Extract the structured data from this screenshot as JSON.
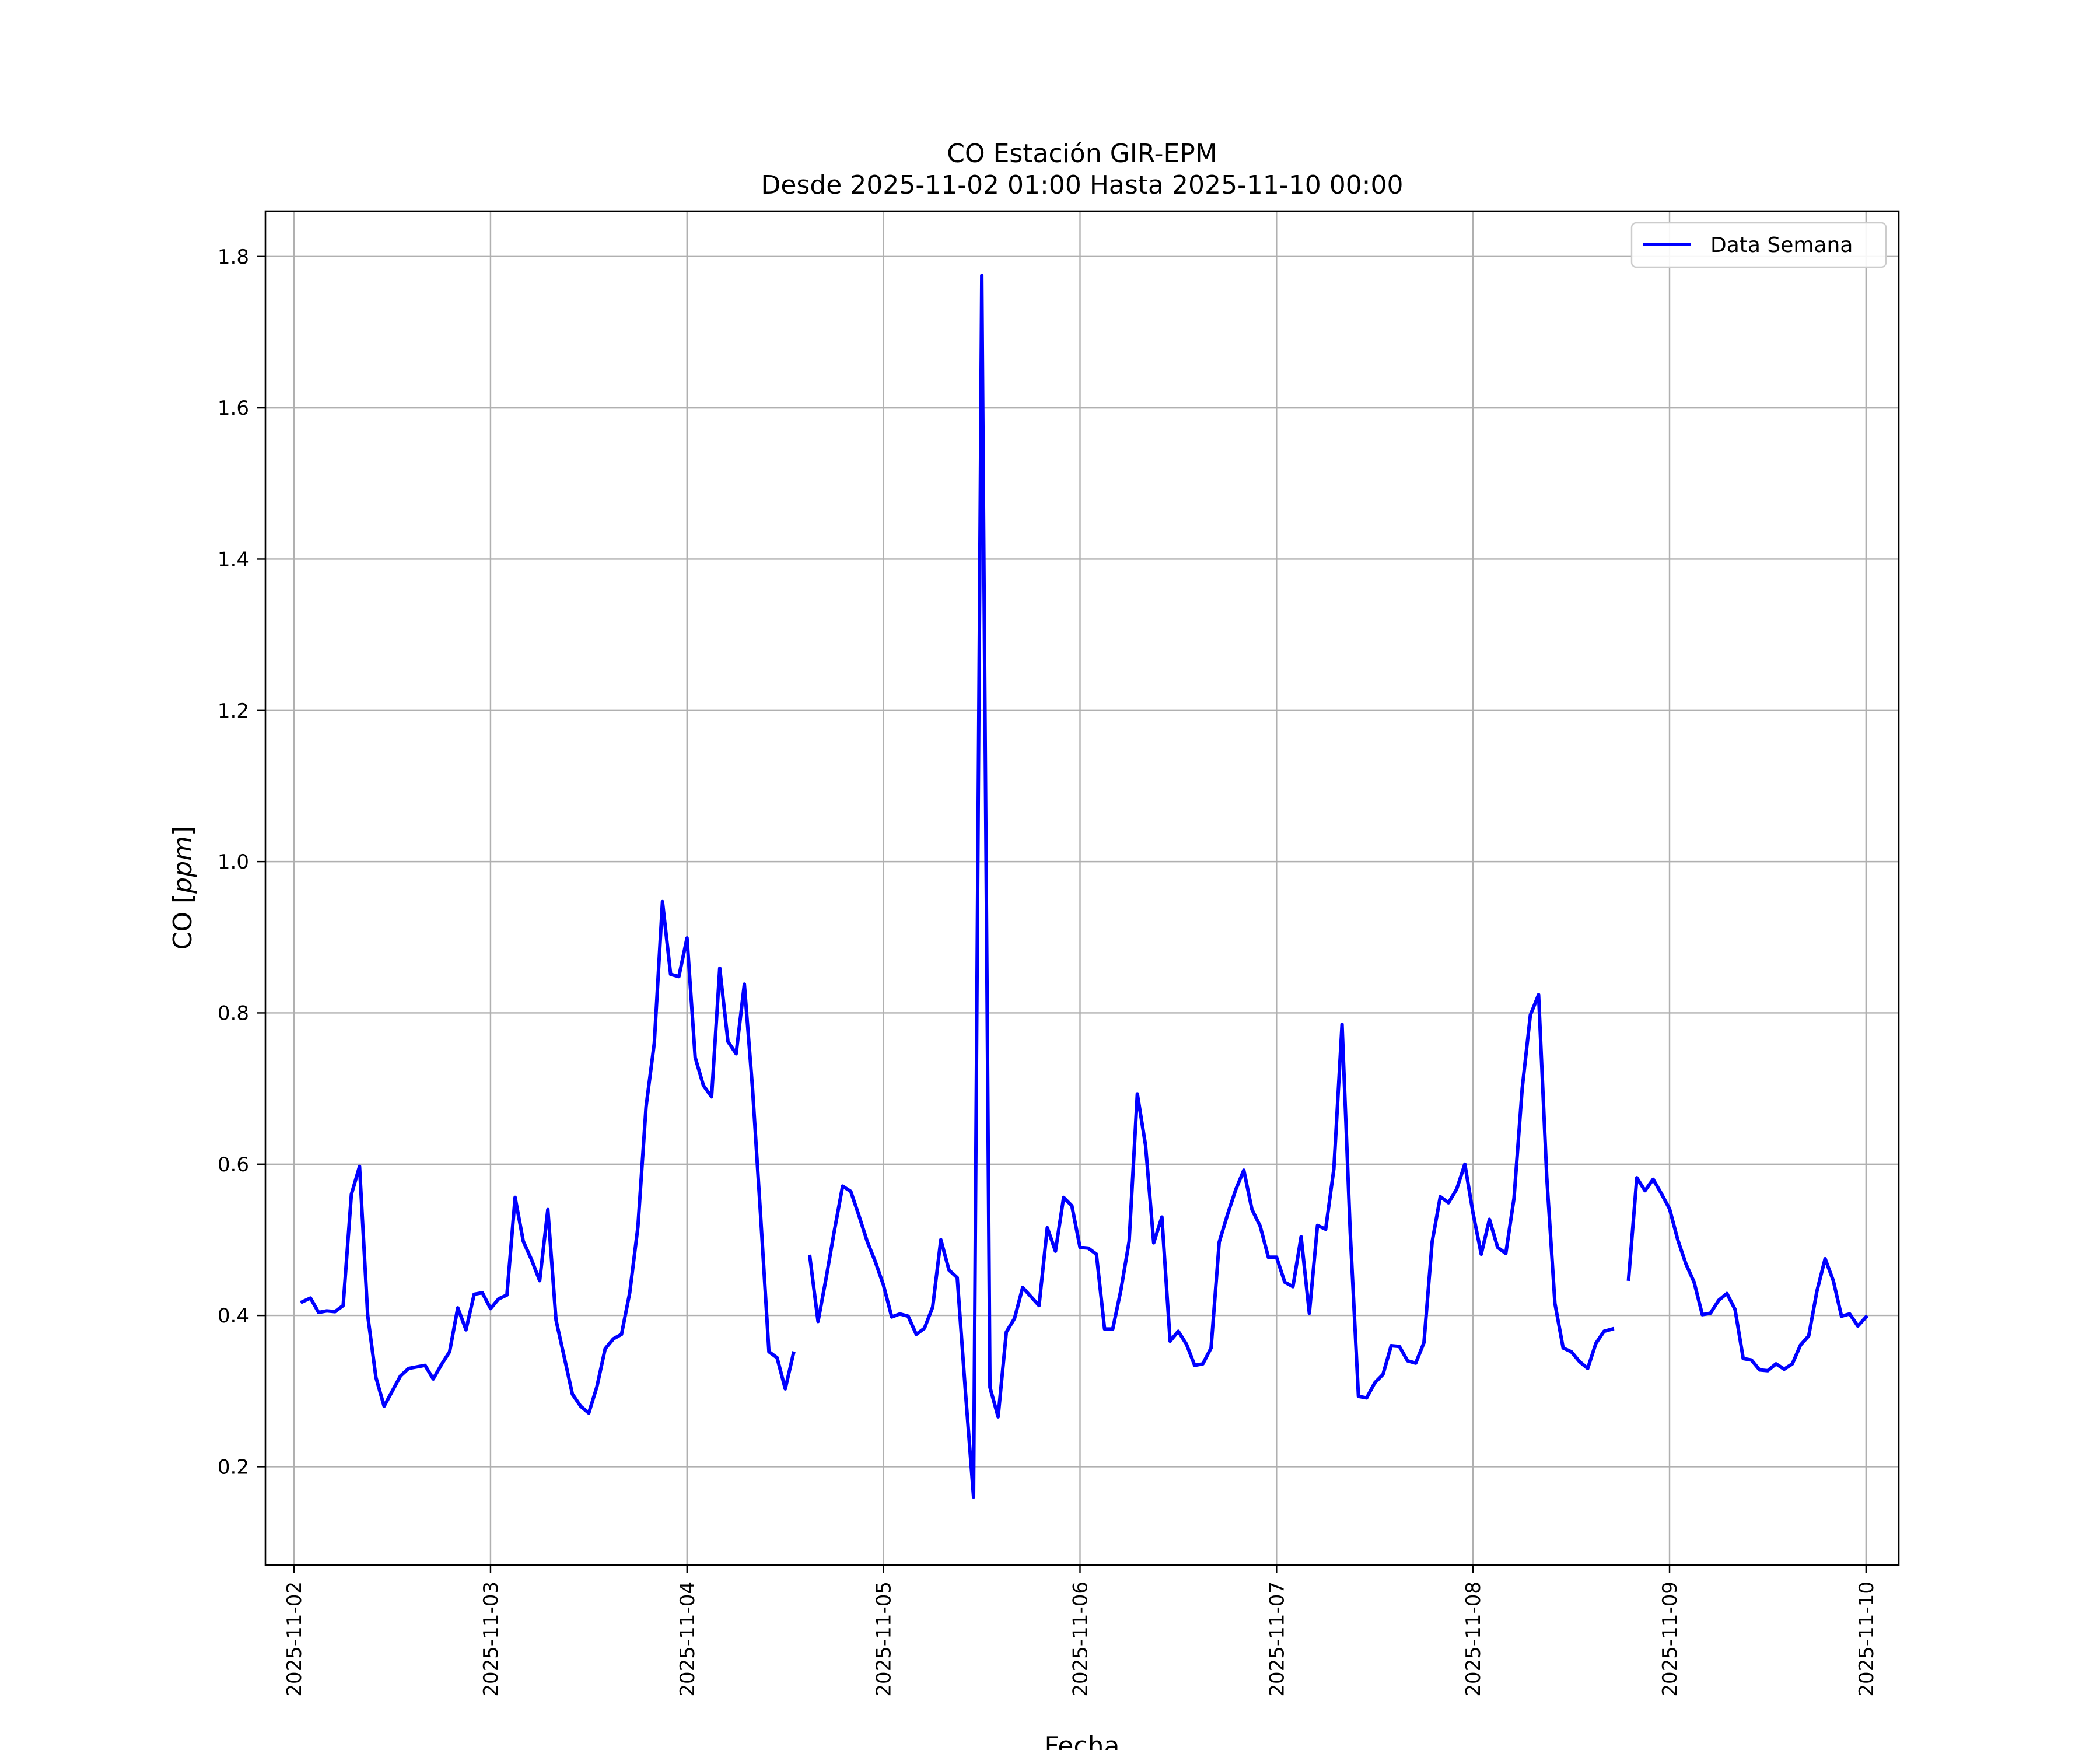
{
  "chart_data": {
    "type": "line",
    "title": "CO Estación GIR-EPM",
    "subtitle": "Desde 2025-11-02 01:00 Hasta 2025-11-10 00:00",
    "xlabel": "Fecha",
    "ylabel_prefix": "CO [",
    "ylabel_unit": "ppm",
    "ylabel_suffix": "]",
    "xlim": [
      "2025-11-01 20:30",
      "2025-11-10 04:00"
    ],
    "ylim": [
      0.07,
      1.86
    ],
    "x_ticks": [
      "2025-11-02",
      "2025-11-03",
      "2025-11-04",
      "2025-11-05",
      "2025-11-06",
      "2025-11-07",
      "2025-11-08",
      "2025-11-09",
      "2025-11-10"
    ],
    "y_ticks": [
      0.2,
      0.4,
      0.6,
      0.8,
      1.0,
      1.2,
      1.4,
      1.6,
      1.8
    ],
    "y_tick_labels": [
      "0.2",
      "0.4",
      "0.6",
      "0.8",
      "1.0",
      "1.2",
      "1.4",
      "1.6",
      "1.8"
    ],
    "grid": true,
    "legend_position": "top-right",
    "line_color": "#0000ff",
    "series": [
      {
        "name": "Data Semana",
        "points": [
          [
            "2025-11-02 01:00",
            0.418
          ],
          [
            "2025-11-02 02:00",
            0.423
          ],
          [
            "2025-11-02 03:00",
            0.404
          ],
          [
            "2025-11-02 04:00",
            0.406
          ],
          [
            "2025-11-02 05:00",
            0.405
          ],
          [
            "2025-11-02 06:00",
            0.413
          ],
          [
            "2025-11-02 07:00",
            0.56
          ],
          [
            "2025-11-02 08:00",
            0.597
          ],
          [
            "2025-11-02 09:00",
            0.4
          ],
          [
            "2025-11-02 10:00",
            0.318
          ],
          [
            "2025-11-02 11:00",
            0.28
          ],
          [
            "2025-11-02 12:00",
            0.3
          ],
          [
            "2025-11-02 13:00",
            0.32
          ],
          [
            "2025-11-02 14:00",
            0.33
          ],
          [
            "2025-11-02 15:00",
            0.332
          ],
          [
            "2025-11-02 16:00",
            0.334
          ],
          [
            "2025-11-02 17:00",
            0.316
          ],
          [
            "2025-11-02 18:00",
            0.335
          ],
          [
            "2025-11-02 19:00",
            0.352
          ],
          [
            "2025-11-02 20:00",
            0.41
          ],
          [
            "2025-11-02 21:00",
            0.381
          ],
          [
            "2025-11-02 22:00",
            0.428
          ],
          [
            "2025-11-02 23:00",
            0.43
          ],
          [
            "2025-11-03 00:00",
            0.409
          ],
          [
            "2025-11-03 01:00",
            0.422
          ],
          [
            "2025-11-03 02:00",
            0.427
          ],
          [
            "2025-11-03 03:00",
            0.556
          ],
          [
            "2025-11-03 04:00",
            0.498
          ],
          [
            "2025-11-03 05:00",
            0.474
          ],
          [
            "2025-11-03 06:00",
            0.446
          ],
          [
            "2025-11-03 07:00",
            0.54
          ],
          [
            "2025-11-03 08:00",
            0.394
          ],
          [
            "2025-11-03 09:00",
            0.345
          ],
          [
            "2025-11-03 10:00",
            0.296
          ],
          [
            "2025-11-03 11:00",
            0.28
          ],
          [
            "2025-11-03 12:00",
            0.271
          ],
          [
            "2025-11-03 13:00",
            0.306
          ],
          [
            "2025-11-03 14:00",
            0.356
          ],
          [
            "2025-11-03 15:00",
            0.369
          ],
          [
            "2025-11-03 16:00",
            0.375
          ],
          [
            "2025-11-03 17:00",
            0.43
          ],
          [
            "2025-11-03 18:00",
            0.517
          ],
          [
            "2025-11-03 19:00",
            0.676
          ],
          [
            "2025-11-03 20:00",
            0.76
          ],
          [
            "2025-11-03 21:00",
            0.947
          ],
          [
            "2025-11-03 22:00",
            0.851
          ],
          [
            "2025-11-03 23:00",
            0.848
          ],
          [
            "2025-11-04 00:00",
            0.899
          ],
          [
            "2025-11-04 01:00",
            0.741
          ],
          [
            "2025-11-04 02:00",
            0.704
          ],
          [
            "2025-11-04 03:00",
            0.689
          ],
          [
            "2025-11-04 04:00",
            0.859
          ],
          [
            "2025-11-04 05:00",
            0.762
          ],
          [
            "2025-11-04 06:00",
            0.746
          ],
          [
            "2025-11-04 07:00",
            0.838
          ],
          [
            "2025-11-04 08:00",
            0.7
          ],
          [
            "2025-11-04 09:00",
            0.53
          ],
          [
            "2025-11-04 10:00",
            0.352
          ],
          [
            "2025-11-04 11:00",
            0.344
          ],
          [
            "2025-11-04 12:00",
            0.303
          ],
          [
            "2025-11-04 13:00",
            0.35
          ],
          [
            "2025-11-04 14:00",
            null
          ],
          [
            "2025-11-04 15:00",
            0.478
          ],
          [
            "2025-11-04 16:00",
            0.392
          ],
          [
            "2025-11-04 17:00",
            0.45
          ],
          [
            "2025-11-04 18:00",
            0.512
          ],
          [
            "2025-11-04 19:00",
            0.571
          ],
          [
            "2025-11-04 20:00",
            0.564
          ],
          [
            "2025-11-04 21:00",
            0.532
          ],
          [
            "2025-11-04 22:00",
            0.498
          ],
          [
            "2025-11-04 23:00",
            0.471
          ],
          [
            "2025-11-05 00:00",
            0.44
          ],
          [
            "2025-11-05 01:00",
            0.398
          ],
          [
            "2025-11-05 02:00",
            0.402
          ],
          [
            "2025-11-05 03:00",
            0.399
          ],
          [
            "2025-11-05 04:00",
            0.375
          ],
          [
            "2025-11-05 05:00",
            0.383
          ],
          [
            "2025-11-05 06:00",
            0.411
          ],
          [
            "2025-11-05 07:00",
            0.5
          ],
          [
            "2025-11-05 08:00",
            0.46
          ],
          [
            "2025-11-05 09:00",
            0.45
          ],
          [
            "2025-11-05 10:00",
            0.3
          ],
          [
            "2025-11-05 11:00",
            0.16
          ],
          [
            "2025-11-05 12:00",
            1.775
          ],
          [
            "2025-11-05 13:00",
            0.305
          ],
          [
            "2025-11-05 14:00",
            0.266
          ],
          [
            "2025-11-05 15:00",
            0.378
          ],
          [
            "2025-11-05 16:00",
            0.396
          ],
          [
            "2025-11-05 17:00",
            0.437
          ],
          [
            "2025-11-05 18:00",
            0.425
          ],
          [
            "2025-11-05 19:00",
            0.413
          ],
          [
            "2025-11-05 20:00",
            0.516
          ],
          [
            "2025-11-05 21:00",
            0.485
          ],
          [
            "2025-11-05 22:00",
            0.556
          ],
          [
            "2025-11-05 23:00",
            0.545
          ],
          [
            "2025-11-06 00:00",
            0.49
          ],
          [
            "2025-11-06 01:00",
            0.489
          ],
          [
            "2025-11-06 02:00",
            0.481
          ],
          [
            "2025-11-06 03:00",
            0.382
          ],
          [
            "2025-11-06 04:00",
            0.382
          ],
          [
            "2025-11-06 05:00",
            0.434
          ],
          [
            "2025-11-06 06:00",
            0.498
          ],
          [
            "2025-11-06 07:00",
            0.693
          ],
          [
            "2025-11-06 08:00",
            0.625
          ],
          [
            "2025-11-06 09:00",
            0.496
          ],
          [
            "2025-11-06 10:00",
            0.53
          ],
          [
            "2025-11-06 11:00",
            0.366
          ],
          [
            "2025-11-06 12:00",
            0.379
          ],
          [
            "2025-11-06 13:00",
            0.362
          ],
          [
            "2025-11-06 14:00",
            0.334
          ],
          [
            "2025-11-06 15:00",
            0.336
          ],
          [
            "2025-11-06 16:00",
            0.357
          ],
          [
            "2025-11-06 17:00",
            0.497
          ],
          [
            "2025-11-06 18:00",
            0.533
          ],
          [
            "2025-11-06 19:00",
            0.566
          ],
          [
            "2025-11-06 20:00",
            0.592
          ],
          [
            "2025-11-06 21:00",
            0.54
          ],
          [
            "2025-11-06 22:00",
            0.518
          ],
          [
            "2025-11-06 23:00",
            0.477
          ],
          [
            "2025-11-07 00:00",
            0.477
          ],
          [
            "2025-11-07 01:00",
            0.444
          ],
          [
            "2025-11-07 02:00",
            0.438
          ],
          [
            "2025-11-07 03:00",
            0.504
          ],
          [
            "2025-11-07 04:00",
            0.403
          ],
          [
            "2025-11-07 05:00",
            0.519
          ],
          [
            "2025-11-07 06:00",
            0.514
          ],
          [
            "2025-11-07 07:00",
            0.594
          ],
          [
            "2025-11-07 08:00",
            0.785
          ],
          [
            "2025-11-07 09:00",
            0.51
          ],
          [
            "2025-11-07 10:00",
            0.293
          ],
          [
            "2025-11-07 11:00",
            0.291
          ],
          [
            "2025-11-07 12:00",
            0.311
          ],
          [
            "2025-11-07 13:00",
            0.322
          ],
          [
            "2025-11-07 14:00",
            0.36
          ],
          [
            "2025-11-07 15:00",
            0.359
          ],
          [
            "2025-11-07 16:00",
            0.34
          ],
          [
            "2025-11-07 17:00",
            0.337
          ],
          [
            "2025-11-07 18:00",
            0.364
          ],
          [
            "2025-11-07 19:00",
            0.497
          ],
          [
            "2025-11-07 20:00",
            0.557
          ],
          [
            "2025-11-07 21:00",
            0.549
          ],
          [
            "2025-11-07 22:00",
            0.567
          ],
          [
            "2025-11-07 23:00",
            0.6
          ],
          [
            "2025-11-08 00:00",
            0.535
          ],
          [
            "2025-11-08 01:00",
            0.481
          ],
          [
            "2025-11-08 02:00",
            0.527
          ],
          [
            "2025-11-08 03:00",
            0.49
          ],
          [
            "2025-11-08 04:00",
            0.482
          ],
          [
            "2025-11-08 05:00",
            0.555
          ],
          [
            "2025-11-08 06:00",
            0.7
          ],
          [
            "2025-11-08 07:00",
            0.797
          ],
          [
            "2025-11-08 08:00",
            0.824
          ],
          [
            "2025-11-08 09:00",
            0.583
          ],
          [
            "2025-11-08 10:00",
            0.416
          ],
          [
            "2025-11-08 11:00",
            0.357
          ],
          [
            "2025-11-08 12:00",
            0.352
          ],
          [
            "2025-11-08 13:00",
            0.339
          ],
          [
            "2025-11-08 14:00",
            0.33
          ],
          [
            "2025-11-08 15:00",
            0.363
          ],
          [
            "2025-11-08 16:00",
            0.379
          ],
          [
            "2025-11-08 17:00",
            0.382
          ],
          [
            "2025-11-08 18:00",
            null
          ],
          [
            "2025-11-08 19:00",
            0.448
          ],
          [
            "2025-11-08 20:00",
            0.582
          ],
          [
            "2025-11-08 21:00",
            0.565
          ],
          [
            "2025-11-08 22:00",
            0.58
          ],
          [
            "2025-11-08 23:00",
            0.561
          ],
          [
            "2025-11-09 00:00",
            0.541
          ],
          [
            "2025-11-09 01:00",
            0.5
          ],
          [
            "2025-11-09 02:00",
            0.468
          ],
          [
            "2025-11-09 03:00",
            0.444
          ],
          [
            "2025-11-09 04:00",
            0.401
          ],
          [
            "2025-11-09 05:00",
            0.403
          ],
          [
            "2025-11-09 06:00",
            0.42
          ],
          [
            "2025-11-09 07:00",
            0.429
          ],
          [
            "2025-11-09 08:00",
            0.408
          ],
          [
            "2025-11-09 09:00",
            0.343
          ],
          [
            "2025-11-09 10:00",
            0.341
          ],
          [
            "2025-11-09 11:00",
            0.328
          ],
          [
            "2025-11-09 12:00",
            0.327
          ],
          [
            "2025-11-09 13:00",
            0.336
          ],
          [
            "2025-11-09 14:00",
            0.329
          ],
          [
            "2025-11-09 15:00",
            0.336
          ],
          [
            "2025-11-09 16:00",
            0.361
          ],
          [
            "2025-11-09 17:00",
            0.373
          ],
          [
            "2025-11-09 18:00",
            0.432
          ],
          [
            "2025-11-09 19:00",
            0.475
          ],
          [
            "2025-11-09 20:00",
            0.446
          ],
          [
            "2025-11-09 21:00",
            0.399
          ],
          [
            "2025-11-09 22:00",
            0.402
          ],
          [
            "2025-11-09 23:00",
            0.386
          ],
          [
            "2025-11-10 00:00",
            0.398
          ]
        ]
      }
    ]
  }
}
